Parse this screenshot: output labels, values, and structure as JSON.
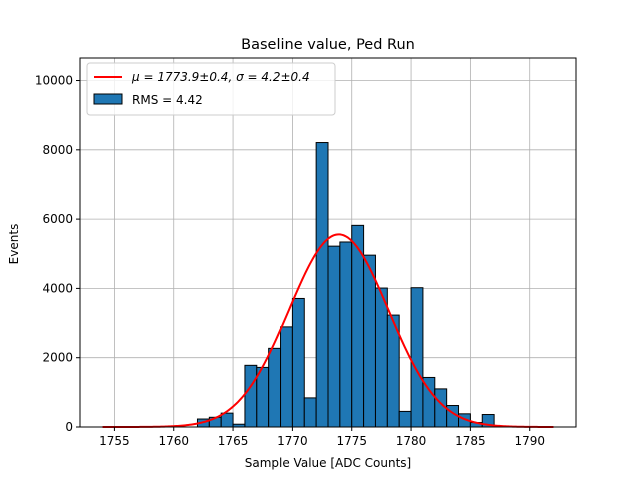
{
  "chart_data": {
    "type": "bar",
    "title": "Baseline value, Ped Run",
    "xlabel": "Sample Value [ADC Counts]",
    "ylabel": "Events",
    "xlim": [
      1752.1,
      1793.9
    ],
    "ylim": [
      0,
      10650
    ],
    "xticks": [
      1755,
      1760,
      1765,
      1770,
      1775,
      1780,
      1785,
      1790
    ],
    "yticks": [
      0,
      2000,
      4000,
      6000,
      8000,
      10000
    ],
    "grid": true,
    "legend_position": "top-left",
    "colors": {
      "bars": "#1f77b4",
      "bar_edge": "#000000",
      "fit_line": "#ff0000",
      "grid": "#b0b0b0"
    },
    "histogram": {
      "name": "RMS = 4.42",
      "bin_edges": [
        1762,
        1763,
        1764,
        1765,
        1766,
        1767,
        1768,
        1769,
        1770,
        1771,
        1772,
        1773,
        1774,
        1775,
        1776,
        1777,
        1778,
        1779,
        1780,
        1781,
        1782,
        1783,
        1784,
        1785,
        1786,
        1787
      ],
      "counts": [
        230,
        280,
        400,
        80,
        1780,
        1720,
        2270,
        2890,
        3710,
        840,
        8210,
        5220,
        5340,
        5820,
        4960,
        4010,
        3230,
        450,
        4020,
        1430,
        1100,
        620,
        380,
        130,
        360
      ]
    },
    "fit": {
      "name": "μ = 1773.9±0.4, σ = 4.2±0.4",
      "function": "gaussian",
      "mean": 1773.9,
      "sigma": 4.2,
      "amplitude": 5560,
      "x_range": [
        1754,
        1792
      ]
    }
  }
}
